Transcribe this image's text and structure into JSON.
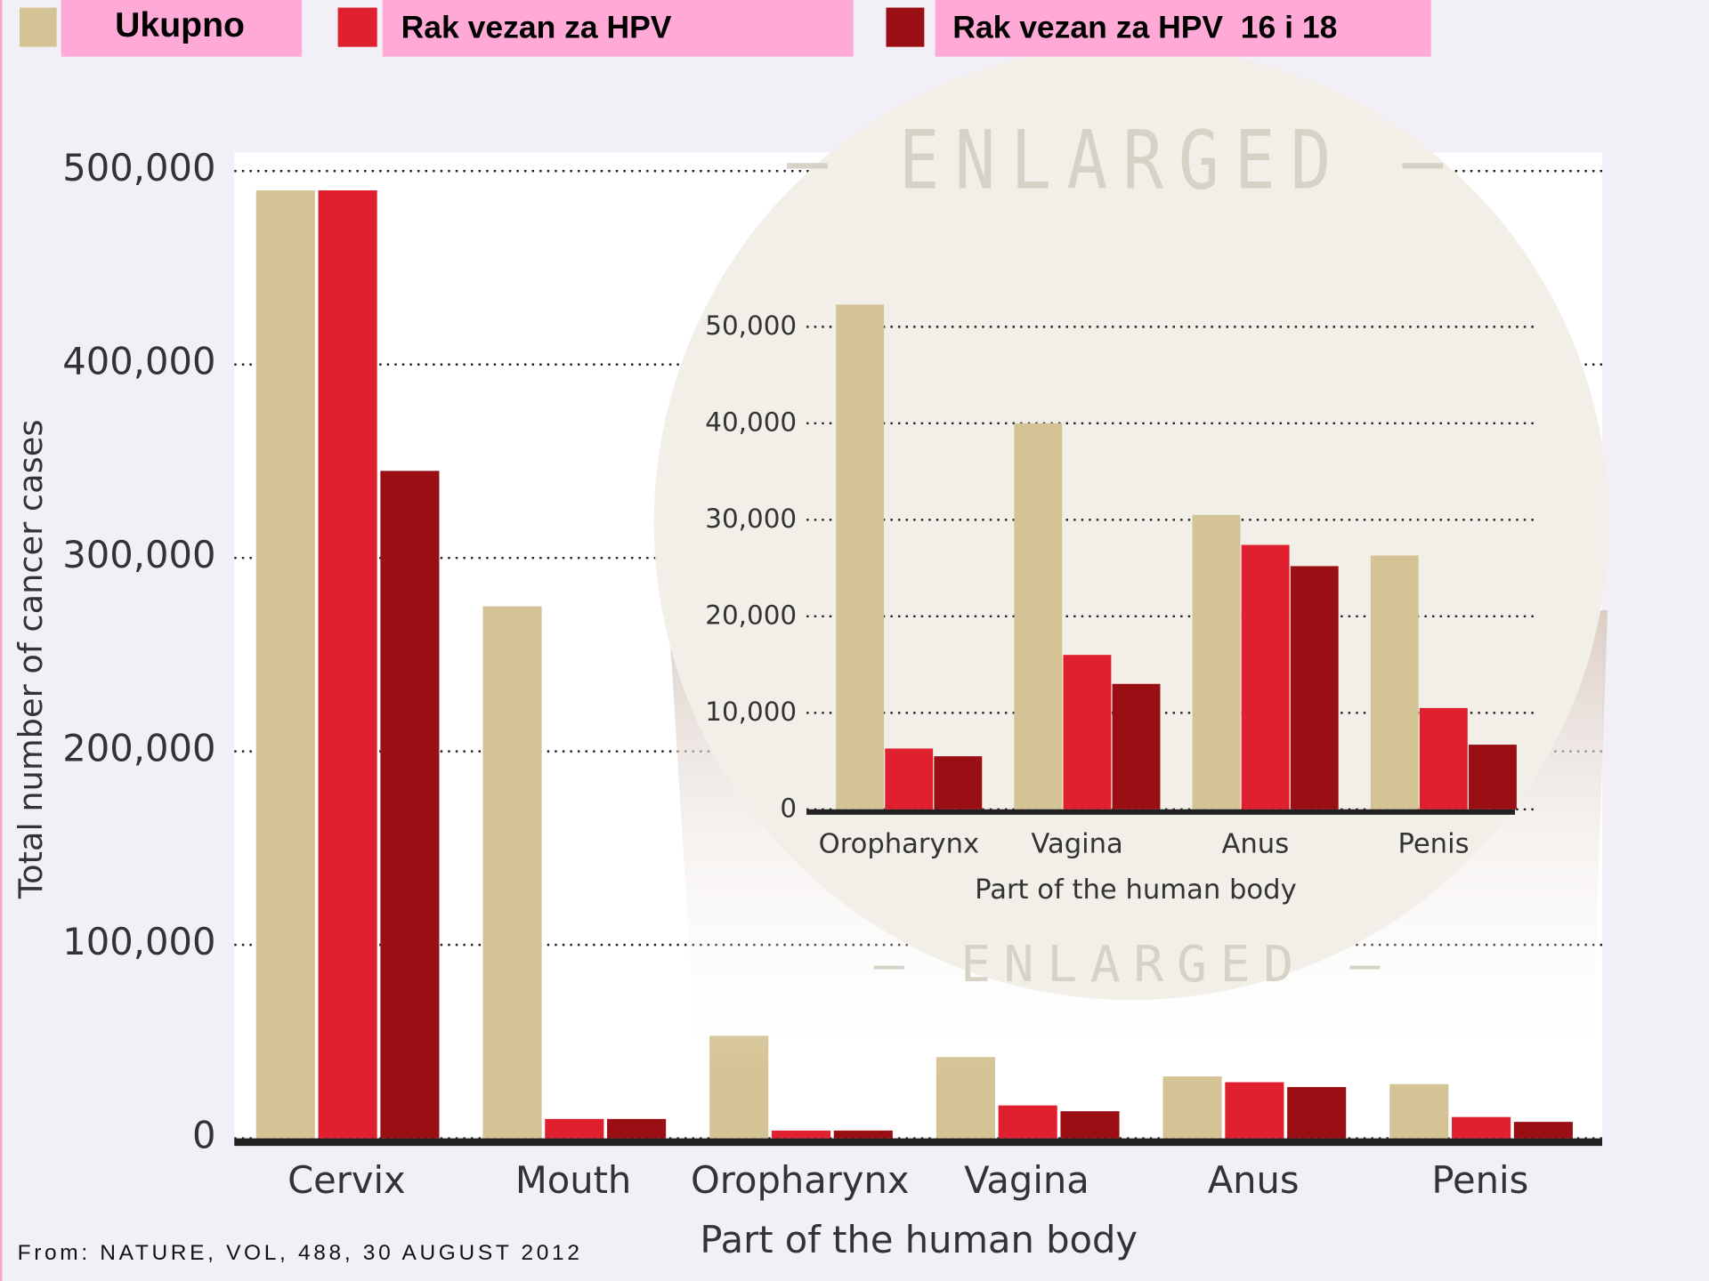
{
  "legend_title": null,
  "source": "From: NATURE, VOL, 488, 30 AUGUST 2012",
  "annotations": [
    "— ENLARGED —",
    "— ENLARGED —"
  ],
  "chart_data": [
    {
      "type": "bar",
      "xlabel": "Part of the human body",
      "ylabel": "Total number of cancer cases",
      "categories": [
        "Cervix",
        "Mouth",
        "Oropharynx",
        "Vagina",
        "Anus",
        "Penis"
      ],
      "series": [
        {
          "name": "Ukupno",
          "color": "#d4c394",
          "values": [
            490000,
            275000,
            53000,
            42000,
            32000,
            28000
          ]
        },
        {
          "name": "Rak vezan za HPV",
          "color": "#e0202e",
          "values": [
            490000,
            10000,
            4000,
            17000,
            29000,
            11000
          ]
        },
        {
          "name": "Rak vezan za HPV  16 i 18",
          "color": "#9a0f14",
          "values": [
            345000,
            10000,
            4000,
            14000,
            26500,
            8500
          ]
        }
      ],
      "ylim": [
        0,
        500000
      ],
      "yticks": [
        0,
        {
          "value": 100000,
          "label": "100,000"
        },
        {
          "value": 200000,
          "label": "200,000"
        },
        {
          "value": 300000,
          "label": "300,000"
        },
        {
          "value": 400000,
          "label": "400,000"
        },
        {
          "value": 500000,
          "label": "500,000"
        }
      ],
      "grid": true
    },
    {
      "type": "bar",
      "xlabel": "Part of the human body",
      "categories": [
        "Oropharynx",
        "Vagina",
        "Anus",
        "Penis"
      ],
      "series": [
        {
          "color": "#d4c394",
          "values": [
            52300,
            40000,
            30500,
            26300
          ]
        },
        {
          "color": "#e0202e",
          "values": [
            6300,
            16000,
            27400,
            10500
          ]
        },
        {
          "color": "#9a0f14",
          "values": [
            5500,
            13000,
            25200,
            6700
          ]
        }
      ],
      "ylim": [
        0,
        50000
      ],
      "yticks": [
        0,
        {
          "value": 10000,
          "label": "10,000"
        },
        {
          "value": 20000,
          "label": "20,000"
        },
        {
          "value": 30000,
          "label": "30,000"
        },
        {
          "value": 40000,
          "label": "40,000"
        },
        {
          "value": 50000,
          "label": "50,000"
        }
      ],
      "grid": true
    }
  ]
}
